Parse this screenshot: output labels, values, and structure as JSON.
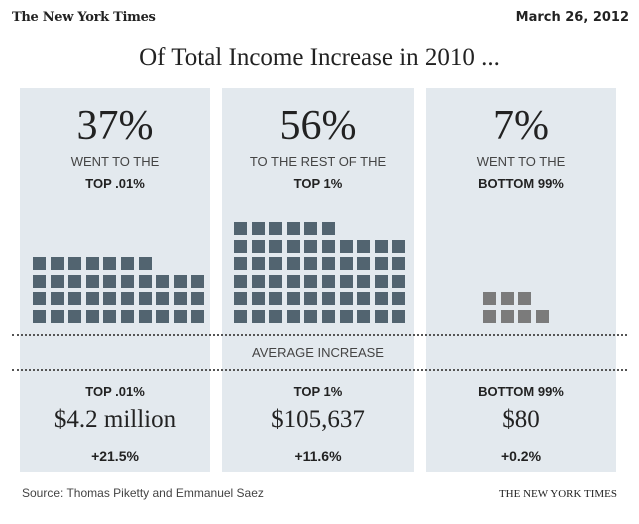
{
  "header": {
    "logo": "The New York Times",
    "date": "March 26, 2012"
  },
  "title": "Of Total Income Increase in 2010 ...",
  "average_label": "AVERAGE INCREASE",
  "panels": [
    {
      "percent": "37%",
      "line1": "WENT TO THE",
      "line2": "TOP .01%",
      "group": "TOP .01%",
      "average": "$4.2 million",
      "change": "+21.5%"
    },
    {
      "percent": "56%",
      "line1": "TO THE REST OF THE",
      "line2": "TOP 1%",
      "group": "TOP 1%",
      "average": "$105,637",
      "change": "+11.6%"
    },
    {
      "percent": "7%",
      "line1": "WENT TO THE",
      "line2": "BOTTOM 99%",
      "group": "BOTTOM 99%",
      "average": "$80",
      "change": "+0.2%"
    }
  ],
  "footer": {
    "source": "Source: Thomas Piketty and Emmanuel Saez",
    "credit": "THE NEW YORK TIMES"
  },
  "chart_data": {
    "type": "waffle",
    "title": "Of Total Income Increase in 2010 ...",
    "categories": [
      "TOP .01%",
      "TOP 1%",
      "BOTTOM 99%"
    ],
    "values": [
      37,
      56,
      7
    ],
    "per_row": [
      10,
      10,
      4
    ],
    "colors": [
      "#526470",
      "#526470",
      "#7b7b7b"
    ]
  }
}
